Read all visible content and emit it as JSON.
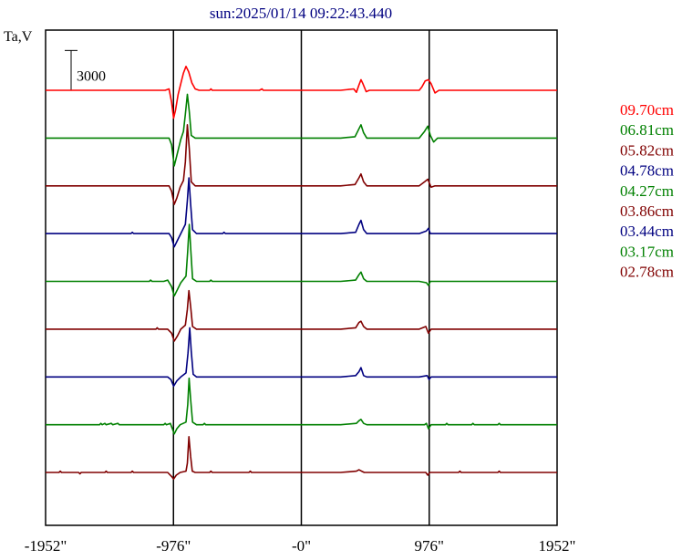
{
  "chart_data": {
    "type": "line",
    "title": "sun:2025/01/14 09:22:43.440",
    "ylabel": "Ta,V",
    "xlabel": "",
    "x_ticks": [
      "-1952\"",
      "-976\"",
      "-0\"",
      "976\"",
      "1952\""
    ],
    "x_tick_values": [
      -1952,
      -976,
      0,
      976,
      1952
    ],
    "xlim": [
      -1952,
      1952
    ],
    "grid_x": [
      -976,
      0,
      976
    ],
    "scale_bar": {
      "label": "3000",
      "value": 3000
    },
    "series": [
      {
        "name": "09.70cm",
        "color": "#ff0000",
        "baseline": 0,
        "points": [
          [
            -1952,
            0
          ],
          [
            -1040,
            0
          ],
          [
            -1010,
            100
          ],
          [
            -990,
            -900
          ],
          [
            -975,
            -2100
          ],
          [
            -960,
            -1500
          ],
          [
            -940,
            -300
          ],
          [
            -915,
            700
          ],
          [
            -900,
            1300
          ],
          [
            -880,
            1800
          ],
          [
            -860,
            1400
          ],
          [
            -835,
            550
          ],
          [
            -810,
            100
          ],
          [
            -780,
            0
          ],
          [
            -700,
            0
          ],
          [
            -690,
            100
          ],
          [
            -680,
            0
          ],
          [
            -400,
            0
          ],
          [
            -320,
            0
          ],
          [
            -300,
            100
          ],
          [
            -290,
            0
          ],
          [
            300,
            0
          ],
          [
            400,
            100
          ],
          [
            420,
            -150
          ],
          [
            440,
            400
          ],
          [
            455,
            800
          ],
          [
            470,
            500
          ],
          [
            495,
            -100
          ],
          [
            520,
            0
          ],
          [
            900,
            0
          ],
          [
            920,
            250
          ],
          [
            945,
            700
          ],
          [
            970,
            800
          ],
          [
            990,
            500
          ],
          [
            1020,
            -200
          ],
          [
            1050,
            0
          ],
          [
            1952,
            0
          ]
        ]
      },
      {
        "name": "06.81cm",
        "color": "#008000",
        "baseline": -3600,
        "points": [
          [
            -1952,
            0
          ],
          [
            -1010,
            0
          ],
          [
            -990,
            -500
          ],
          [
            -970,
            -2100
          ],
          [
            -950,
            -1300
          ],
          [
            -920,
            -100
          ],
          [
            -900,
            500
          ],
          [
            -885,
            1800
          ],
          [
            -870,
            3300
          ],
          [
            -855,
            2000
          ],
          [
            -840,
            200
          ],
          [
            -810,
            0
          ],
          [
            300,
            0
          ],
          [
            410,
            100
          ],
          [
            440,
            700
          ],
          [
            455,
            1000
          ],
          [
            475,
            400
          ],
          [
            500,
            0
          ],
          [
            900,
            0
          ],
          [
            940,
            500
          ],
          [
            965,
            900
          ],
          [
            985,
            200
          ],
          [
            1010,
            -300
          ],
          [
            1040,
            0
          ],
          [
            1952,
            0
          ]
        ]
      },
      {
        "name": "05.82cm",
        "color": "#800000",
        "baseline": -7200,
        "points": [
          [
            -1952,
            0
          ],
          [
            -1010,
            0
          ],
          [
            -990,
            -400
          ],
          [
            -970,
            -1400
          ],
          [
            -950,
            -900
          ],
          [
            -925,
            -100
          ],
          [
            -900,
            400
          ],
          [
            -885,
            1800
          ],
          [
            -870,
            4600
          ],
          [
            -855,
            2800
          ],
          [
            -840,
            300
          ],
          [
            -810,
            0
          ],
          [
            300,
            0
          ],
          [
            410,
            100
          ],
          [
            440,
            600
          ],
          [
            455,
            900
          ],
          [
            475,
            300
          ],
          [
            500,
            0
          ],
          [
            900,
            0
          ],
          [
            940,
            300
          ],
          [
            965,
            500
          ],
          [
            990,
            -100
          ],
          [
            1020,
            0
          ],
          [
            1952,
            0
          ]
        ]
      },
      {
        "name": "04.78cm",
        "color": "#000080",
        "baseline": -10800,
        "points": [
          [
            -1952,
            0
          ],
          [
            -1300,
            0
          ],
          [
            -1290,
            100
          ],
          [
            -1280,
            0
          ],
          [
            -1010,
            0
          ],
          [
            -990,
            -300
          ],
          [
            -970,
            -1000
          ],
          [
            -945,
            -500
          ],
          [
            -920,
            0
          ],
          [
            -885,
            700
          ],
          [
            -870,
            2500
          ],
          [
            -858,
            4200
          ],
          [
            -845,
            2200
          ],
          [
            -830,
            300
          ],
          [
            -800,
            0
          ],
          [
            -600,
            0
          ],
          [
            -590,
            100
          ],
          [
            -580,
            0
          ],
          [
            300,
            0
          ],
          [
            415,
            100
          ],
          [
            440,
            700
          ],
          [
            455,
            1000
          ],
          [
            475,
            300
          ],
          [
            500,
            0
          ],
          [
            900,
            0
          ],
          [
            955,
            200
          ],
          [
            970,
            400
          ],
          [
            985,
            0
          ],
          [
            1952,
            0
          ]
        ]
      },
      {
        "name": "04.27cm",
        "color": "#008000",
        "baseline": -14400,
        "points": [
          [
            -1952,
            0
          ],
          [
            -1160,
            0
          ],
          [
            -1150,
            100
          ],
          [
            -1140,
            0
          ],
          [
            -1050,
            0
          ],
          [
            -1020,
            100
          ],
          [
            -990,
            -400
          ],
          [
            -970,
            -1100
          ],
          [
            -945,
            -600
          ],
          [
            -920,
            -100
          ],
          [
            -880,
            400
          ],
          [
            -868,
            2200
          ],
          [
            -855,
            4300
          ],
          [
            -843,
            2200
          ],
          [
            -830,
            200
          ],
          [
            -800,
            0
          ],
          [
            -700,
            0
          ],
          [
            -690,
            100
          ],
          [
            -680,
            0
          ],
          [
            300,
            0
          ],
          [
            415,
            100
          ],
          [
            440,
            500
          ],
          [
            455,
            700
          ],
          [
            475,
            200
          ],
          [
            500,
            0
          ],
          [
            900,
            0
          ],
          [
            955,
            -100
          ],
          [
            970,
            -300
          ],
          [
            985,
            0
          ],
          [
            1952,
            0
          ]
        ]
      },
      {
        "name": "03.86cm",
        "color": "#800000",
        "baseline": -18000,
        "points": [
          [
            -1952,
            0
          ],
          [
            -1110,
            0
          ],
          [
            -1100,
            100
          ],
          [
            -1090,
            0
          ],
          [
            -1020,
            0
          ],
          [
            -990,
            -300
          ],
          [
            -970,
            -900
          ],
          [
            -945,
            -500
          ],
          [
            -920,
            0
          ],
          [
            -885,
            300
          ],
          [
            -870,
            1500
          ],
          [
            -858,
            2900
          ],
          [
            -845,
            1700
          ],
          [
            -830,
            200
          ],
          [
            -800,
            0
          ],
          [
            300,
            0
          ],
          [
            415,
            100
          ],
          [
            440,
            500
          ],
          [
            455,
            600
          ],
          [
            475,
            200
          ],
          [
            500,
            0
          ],
          [
            900,
            0
          ],
          [
            950,
            200
          ],
          [
            970,
            -300
          ],
          [
            990,
            0
          ],
          [
            1952,
            0
          ]
        ]
      },
      {
        "name": "03.44cm",
        "color": "#000080",
        "baseline": -21600,
        "points": [
          [
            -1952,
            0
          ],
          [
            -1020,
            0
          ],
          [
            -995,
            -200
          ],
          [
            -975,
            -700
          ],
          [
            -950,
            -300
          ],
          [
            -920,
            0
          ],
          [
            -880,
            300
          ],
          [
            -865,
            1800
          ],
          [
            -852,
            3700
          ],
          [
            -840,
            1900
          ],
          [
            -825,
            200
          ],
          [
            -800,
            0
          ],
          [
            300,
            0
          ],
          [
            415,
            100
          ],
          [
            440,
            400
          ],
          [
            455,
            700
          ],
          [
            475,
            100
          ],
          [
            500,
            0
          ],
          [
            900,
            0
          ],
          [
            960,
            100
          ],
          [
            975,
            -200
          ],
          [
            990,
            0
          ],
          [
            1952,
            0
          ]
        ]
      },
      {
        "name": "03.17cm",
        "color": "#008000",
        "baseline": -25200,
        "points": [
          [
            -1952,
            0
          ],
          [
            -1540,
            0
          ],
          [
            -1530,
            100
          ],
          [
            -1520,
            0
          ],
          [
            -1500,
            100
          ],
          [
            -1490,
            0
          ],
          [
            -1450,
            100
          ],
          [
            -1440,
            0
          ],
          [
            -1400,
            100
          ],
          [
            -1390,
            0
          ],
          [
            -1050,
            0
          ],
          [
            -1040,
            100
          ],
          [
            -1030,
            0
          ],
          [
            -1000,
            100
          ],
          [
            -985,
            -300
          ],
          [
            -970,
            -700
          ],
          [
            -950,
            -300
          ],
          [
            -925,
            0
          ],
          [
            -880,
            200
          ],
          [
            -867,
            1500
          ],
          [
            -857,
            3500
          ],
          [
            -845,
            1900
          ],
          [
            -830,
            200
          ],
          [
            -800,
            0
          ],
          [
            -750,
            0
          ],
          [
            -740,
            100
          ],
          [
            -730,
            0
          ],
          [
            300,
            0
          ],
          [
            420,
            100
          ],
          [
            440,
            300
          ],
          [
            455,
            400
          ],
          [
            475,
            100
          ],
          [
            500,
            0
          ],
          [
            940,
            0
          ],
          [
            955,
            100
          ],
          [
            970,
            -300
          ],
          [
            990,
            0
          ],
          [
            1100,
            0
          ],
          [
            1110,
            100
          ],
          [
            1120,
            0
          ],
          [
            1300,
            0
          ],
          [
            1310,
            100
          ],
          [
            1320,
            0
          ],
          [
            1500,
            0
          ],
          [
            1510,
            100
          ],
          [
            1520,
            0
          ],
          [
            1952,
            0
          ]
        ]
      },
      {
        "name": "02.78cm",
        "color": "#800000",
        "baseline": -28800,
        "points": [
          [
            -1952,
            0
          ],
          [
            -1850,
            0
          ],
          [
            -1840,
            100
          ],
          [
            -1830,
            0
          ],
          [
            -1700,
            0
          ],
          [
            -1690,
            -100
          ],
          [
            -1680,
            0
          ],
          [
            -1500,
            0
          ],
          [
            -1490,
            100
          ],
          [
            -1480,
            0
          ],
          [
            -1300,
            0
          ],
          [
            -1290,
            100
          ],
          [
            -1280,
            0
          ],
          [
            -1020,
            0
          ],
          [
            -990,
            -300
          ],
          [
            -975,
            -500
          ],
          [
            -955,
            -200
          ],
          [
            -925,
            0
          ],
          [
            -880,
            100
          ],
          [
            -870,
            700
          ],
          [
            -858,
            2700
          ],
          [
            -845,
            1200
          ],
          [
            -832,
            100
          ],
          [
            -810,
            0
          ],
          [
            -700,
            0
          ],
          [
            -690,
            100
          ],
          [
            -680,
            0
          ],
          [
            -400,
            0
          ],
          [
            -390,
            100
          ],
          [
            -380,
            0
          ],
          [
            300,
            0
          ],
          [
            420,
            100
          ],
          [
            440,
            200
          ],
          [
            460,
            100
          ],
          [
            480,
            0
          ],
          [
            950,
            0
          ],
          [
            965,
            -200
          ],
          [
            980,
            0
          ],
          [
            1200,
            0
          ],
          [
            1210,
            100
          ],
          [
            1220,
            0
          ],
          [
            1500,
            0
          ],
          [
            1510,
            100
          ],
          [
            1520,
            0
          ],
          [
            1952,
            0
          ]
        ]
      }
    ]
  }
}
